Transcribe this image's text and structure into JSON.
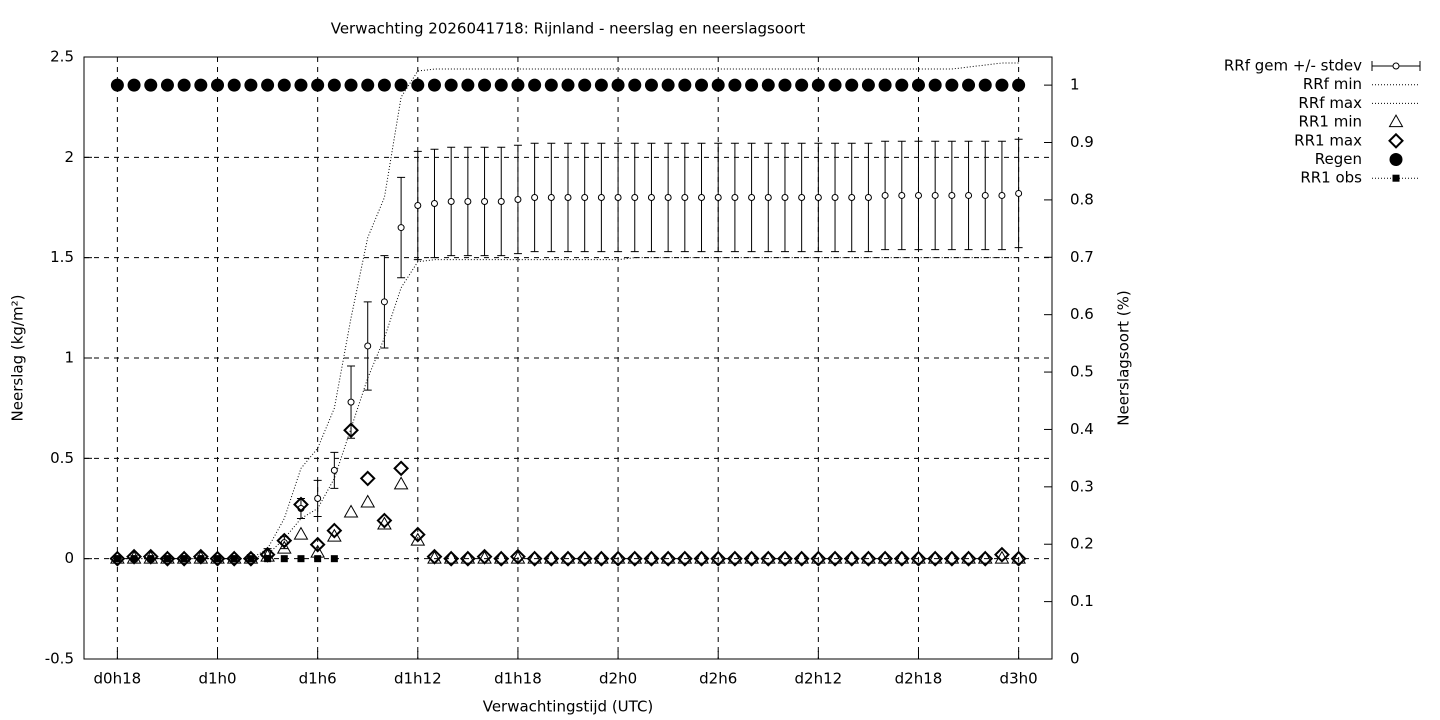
{
  "chart_data": {
    "type": "errorbar",
    "title": "Verwachting 2026041718: Rijnland - neerslag en neerslagsoort",
    "xlabel": "Verwachtingstijd (UTC)",
    "ylabel": "Neerslag (kg/m²)",
    "y2label": "Neerslagsoort (%)",
    "x": [
      18,
      19,
      20,
      21,
      22,
      23,
      24,
      25,
      26,
      27,
      28,
      29,
      30,
      31,
      32,
      33,
      34,
      35,
      36,
      37,
      38,
      39,
      40,
      41,
      42,
      43,
      44,
      45,
      46,
      47,
      48,
      49,
      50,
      51,
      52,
      53,
      54,
      55,
      56,
      57,
      58,
      59,
      60,
      61,
      62,
      63,
      64,
      65,
      66,
      67,
      68,
      69,
      70,
      71,
      72
    ],
    "xlim": [
      16,
      74
    ],
    "xticks": [
      {
        "value": 18,
        "label": "d0h18"
      },
      {
        "value": 24,
        "label": "d1h0"
      },
      {
        "value": 30,
        "label": "d1h6"
      },
      {
        "value": 36,
        "label": "d1h12"
      },
      {
        "value": 42,
        "label": "d1h18"
      },
      {
        "value": 48,
        "label": "d2h0"
      },
      {
        "value": 54,
        "label": "d2h6"
      },
      {
        "value": 60,
        "label": "d2h12"
      },
      {
        "value": 66,
        "label": "d2h18"
      },
      {
        "value": 72,
        "label": "d3h0"
      }
    ],
    "ylim": [
      -0.5,
      2.5
    ],
    "yticks": [
      -0.5,
      0,
      0.5,
      1,
      1.5,
      2,
      2.5
    ],
    "y2lim": [
      0,
      1.049
    ],
    "y2ticks": [
      0,
      0.1,
      0.2,
      0.3,
      0.4,
      0.5,
      0.6,
      0.7,
      0.8,
      0.9,
      1
    ],
    "grid": true,
    "legend": "outside-right",
    "series": [
      {
        "name": "RRf gem +/- stdev",
        "color": "#000000",
        "marker": "errorbar",
        "values": [
          0,
          0,
          0,
          0,
          0,
          0,
          0,
          0,
          0.01,
          0.03,
          0.08,
          0.25,
          0.3,
          0.44,
          0.78,
          1.06,
          1.28,
          1.65,
          1.76,
          1.77,
          1.78,
          1.78,
          1.78,
          1.78,
          1.79,
          1.8,
          1.8,
          1.8,
          1.8,
          1.8,
          1.8,
          1.8,
          1.8,
          1.8,
          1.8,
          1.8,
          1.8,
          1.8,
          1.8,
          1.8,
          1.8,
          1.8,
          1.8,
          1.8,
          1.8,
          1.8,
          1.81,
          1.81,
          1.81,
          1.81,
          1.81,
          1.81,
          1.81,
          1.81,
          1.82
        ],
        "errors": [
          0,
          0,
          0,
          0,
          0,
          0,
          0,
          0,
          0.01,
          0.02,
          0.03,
          0.05,
          0.09,
          0.09,
          0.18,
          0.22,
          0.23,
          0.25,
          0.27,
          0.27,
          0.27,
          0.27,
          0.27,
          0.27,
          0.27,
          0.27,
          0.27,
          0.27,
          0.27,
          0.27,
          0.27,
          0.27,
          0.27,
          0.27,
          0.27,
          0.27,
          0.27,
          0.27,
          0.27,
          0.27,
          0.27,
          0.27,
          0.27,
          0.27,
          0.27,
          0.27,
          0.27,
          0.27,
          0.27,
          0.27,
          0.27,
          0.27,
          0.27,
          0.27,
          0.27
        ]
      },
      {
        "name": "RRf min",
        "color": "#000000",
        "marker": "dotted-line",
        "values": [
          0,
          0,
          0,
          0,
          0,
          0,
          0,
          0,
          0,
          0.02,
          0.1,
          0.2,
          0.25,
          0.4,
          0.65,
          0.9,
          1.1,
          1.35,
          1.48,
          1.49,
          1.49,
          1.49,
          1.49,
          1.49,
          1.49,
          1.49,
          1.49,
          1.49,
          1.49,
          1.49,
          1.49,
          1.5,
          1.5,
          1.5,
          1.5,
          1.5,
          1.5,
          1.5,
          1.5,
          1.5,
          1.5,
          1.5,
          1.5,
          1.5,
          1.5,
          1.5,
          1.5,
          1.5,
          1.5,
          1.5,
          1.5,
          1.5,
          1.5,
          1.5,
          1.5
        ]
      },
      {
        "name": "RRf max",
        "color": "#000000",
        "marker": "dotted-line",
        "values": [
          0,
          0,
          0,
          0,
          0,
          0,
          0,
          0,
          0,
          0.05,
          0.2,
          0.45,
          0.55,
          0.75,
          1.2,
          1.6,
          1.8,
          2.3,
          2.43,
          2.44,
          2.44,
          2.44,
          2.44,
          2.44,
          2.44,
          2.44,
          2.44,
          2.44,
          2.44,
          2.44,
          2.44,
          2.44,
          2.44,
          2.44,
          2.44,
          2.44,
          2.44,
          2.44,
          2.44,
          2.44,
          2.44,
          2.44,
          2.44,
          2.44,
          2.44,
          2.44,
          2.44,
          2.44,
          2.44,
          2.44,
          2.44,
          2.45,
          2.46,
          2.47,
          2.47
        ]
      },
      {
        "name": "RR1 min",
        "color": "#000000",
        "marker": "triangle",
        "values": [
          0,
          0,
          0,
          0,
          0,
          0,
          0,
          0,
          0,
          0.01,
          0.05,
          0.12,
          0.03,
          0.11,
          0.23,
          0.28,
          0.17,
          0.37,
          0.09,
          0,
          0,
          0,
          0,
          0,
          0,
          0,
          0,
          0,
          0,
          0,
          0,
          0,
          0,
          0,
          0,
          0,
          0,
          0,
          0,
          0,
          0,
          0,
          0,
          0,
          0,
          0,
          0,
          0,
          0,
          0,
          0,
          0,
          0,
          0,
          0
        ]
      },
      {
        "name": "RR1 max",
        "color": "#000000",
        "marker": "diamond",
        "values": [
          0,
          0.01,
          0.01,
          0,
          0,
          0.01,
          0,
          0,
          0,
          0.02,
          0.09,
          0.27,
          0.07,
          0.14,
          0.64,
          0.4,
          0.19,
          0.45,
          0.12,
          0.01,
          0,
          0,
          0.01,
          0,
          0.01,
          0,
          0,
          0,
          0,
          0,
          0,
          0,
          0,
          0,
          0,
          0,
          0,
          0,
          0,
          0,
          0,
          0,
          0,
          0,
          0,
          0,
          0,
          0,
          0,
          0,
          0,
          0,
          0,
          0.02,
          0
        ]
      },
      {
        "name": "Regen",
        "color": "#000000",
        "marker": "circle",
        "axis": "y2",
        "values": [
          1,
          1,
          1,
          1,
          1,
          1,
          1,
          1,
          1,
          1,
          1,
          1,
          1,
          1,
          1,
          1,
          1,
          1,
          1,
          1,
          1,
          1,
          1,
          1,
          1,
          1,
          1,
          1,
          1,
          1,
          1,
          1,
          1,
          1,
          1,
          1,
          1,
          1,
          1,
          1,
          1,
          1,
          1,
          1,
          1,
          1,
          1,
          1,
          1,
          1,
          1,
          1,
          1,
          1,
          1
        ]
      },
      {
        "name": "RR1 obs",
        "color": "#000000",
        "marker": "square",
        "values": [
          0,
          0,
          0,
          0,
          0,
          0,
          0,
          0,
          0,
          0,
          0,
          0,
          0,
          0,
          null,
          null,
          null,
          null,
          null,
          null,
          null,
          null,
          null,
          null,
          null,
          null,
          null,
          null,
          null,
          null,
          null,
          null,
          null,
          null,
          null,
          null,
          null,
          null,
          null,
          null,
          null,
          null,
          null,
          null,
          null,
          null,
          null,
          null,
          null,
          null,
          null,
          null,
          null,
          null,
          null
        ]
      }
    ]
  }
}
